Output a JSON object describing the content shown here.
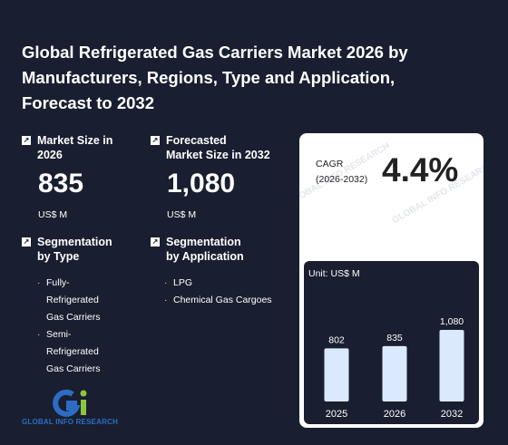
{
  "title": "Global Refrigerated Gas Carriers Market 2026 by Manufacturers, Regions, Type and Application, Forecast to 2032",
  "market_size": {
    "label": "Market Size in 2026",
    "value": "835",
    "unit": "US$ M"
  },
  "forecast": {
    "label_line1": "Forecasted",
    "label_line2": "Market Size in 2032",
    "value": "1,080",
    "unit": "US$ M"
  },
  "seg_type": {
    "label_line1": "Segmentation",
    "label_line2": "by Type",
    "items": [
      "Fully-Refrigerated Gas Carriers",
      "Semi-Refrigerated Gas Carriers"
    ]
  },
  "seg_app": {
    "label_line1": "Segmentation",
    "label_line2": "by Application",
    "items": [
      "LPG",
      "Chemical Gas Cargoes"
    ]
  },
  "cagr": {
    "label_line1": "CAGR",
    "label_line2": "(2026-2032)",
    "value": "4.4%"
  },
  "logo_text": "GLOBAL INFO RESEARCH",
  "watermark": "GLOBAL INFO RESEARCH",
  "icon": "arrow-up-right-icon",
  "colors": {
    "background": "#191f30",
    "bar": "#dbe9ff",
    "card": "#ffffff",
    "logo_blue": "#2d6cc4",
    "logo_green": "#8cc63f"
  },
  "chart_data": {
    "type": "bar",
    "unit_label": "Unit: US$ M",
    "categories": [
      "2025",
      "2026",
      "2032"
    ],
    "values": [
      802,
      835,
      1080
    ],
    "value_labels": [
      "802",
      "835",
      "1,080"
    ],
    "ylim": [
      0,
      1200
    ]
  }
}
